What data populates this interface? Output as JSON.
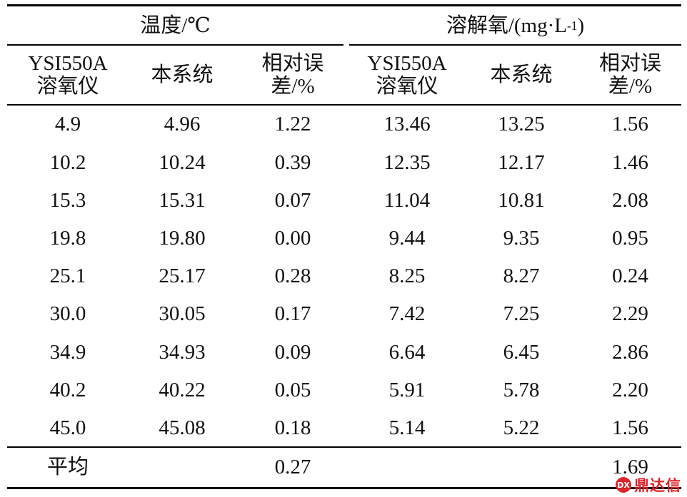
{
  "table": {
    "group_headers": {
      "temperature": "温度/℃",
      "do_prefix": "溶解氧/(mg·L",
      "do_sup": "-1",
      "do_suffix": ")"
    },
    "sub_headers": {
      "ysi_line1": "YSI550A",
      "ysi_line2": "溶氧仪",
      "system": "本系统",
      "err_line1": "相对误",
      "err_line2": "差/%"
    },
    "rows": [
      [
        "4.9",
        "4.96",
        "1.22",
        "13.46",
        "13.25",
        "1.56"
      ],
      [
        "10.2",
        "10.24",
        "0.39",
        "12.35",
        "12.17",
        "1.46"
      ],
      [
        "15.3",
        "15.31",
        "0.07",
        "11.04",
        "10.81",
        "2.08"
      ],
      [
        "19.8",
        "19.80",
        "0.00",
        "9.44",
        "9.35",
        "0.95"
      ],
      [
        "25.1",
        "25.17",
        "0.28",
        "8.25",
        "8.27",
        "0.24"
      ],
      [
        "30.0",
        "30.05",
        "0.17",
        "7.42",
        "7.25",
        "2.29"
      ],
      [
        "34.9",
        "34.93",
        "0.09",
        "6.64",
        "6.45",
        "2.86"
      ],
      [
        "40.2",
        "40.22",
        "0.05",
        "5.91",
        "5.78",
        "2.20"
      ],
      [
        "45.0",
        "45.08",
        "0.18",
        "5.14",
        "5.22",
        "1.56"
      ]
    ],
    "average": {
      "label": "平均",
      "temp_error": "0.27",
      "do_error": "1.69"
    }
  },
  "watermark": {
    "text": "鼎达信",
    "color": "#d9262c"
  }
}
